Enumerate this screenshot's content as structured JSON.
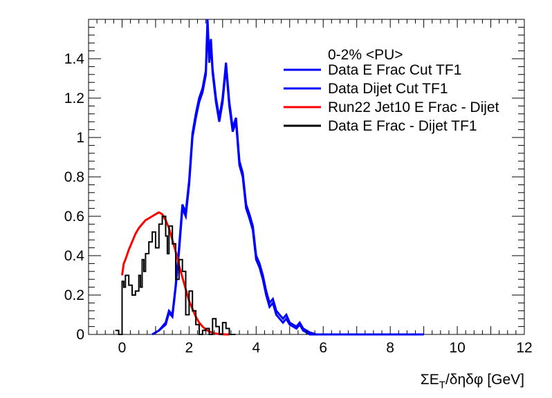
{
  "chart_data": {
    "type": "line",
    "title": "",
    "xlabel": "ΣE_T/δηδφ [GeV]",
    "xlabel_parts": {
      "pre": "ΣE",
      "sub": "T",
      "post": "/δηδφ [GeV]"
    },
    "ylabel": "",
    "xlim": [
      -1,
      12
    ],
    "ylim": [
      0,
      1.6
    ],
    "x_ticks": [
      "0",
      "2",
      "4",
      "6",
      "8",
      "10",
      "12"
    ],
    "x_tick_values": [
      0,
      2,
      4,
      6,
      8,
      10,
      12
    ],
    "y_ticks": [
      "0",
      "0.2",
      "0.4",
      "0.6",
      "0.8",
      "1",
      "1.2",
      "1.4"
    ],
    "y_tick_values": [
      0,
      0.2,
      0.4,
      0.6,
      0.8,
      1.0,
      1.2,
      1.4
    ],
    "grid": false,
    "legend_placement": "top-right",
    "legend_header": "0-2% <PU>",
    "series": [
      {
        "name": "Data E Frac Cut TF1",
        "color": "#0000ff",
        "style": "line",
        "x": [
          0.9,
          1.1,
          1.3,
          1.4,
          1.5,
          1.6,
          1.7,
          1.8,
          1.9,
          2.0,
          2.1,
          2.2,
          2.3,
          2.4,
          2.5,
          2.55,
          2.6,
          2.65,
          2.7,
          2.8,
          2.9,
          3.0,
          3.1,
          3.2,
          3.3,
          3.4,
          3.5,
          3.6,
          3.7,
          3.8,
          3.9,
          4.0,
          4.1,
          4.2,
          4.3,
          4.4,
          4.5,
          4.6,
          4.7,
          4.8,
          4.9,
          5.0,
          5.1,
          5.2,
          5.3,
          5.4,
          5.5,
          5.6,
          5.8,
          6.0,
          7.0,
          8.0,
          9.0
        ],
        "y": [
          0.0,
          0.02,
          0.06,
          0.12,
          0.1,
          0.25,
          0.44,
          0.66,
          0.62,
          0.78,
          1.02,
          1.12,
          1.2,
          1.25,
          1.34,
          1.6,
          1.4,
          1.5,
          1.35,
          1.2,
          1.1,
          1.2,
          1.38,
          1.18,
          1.05,
          1.1,
          0.88,
          0.82,
          0.66,
          0.61,
          0.55,
          0.4,
          0.36,
          0.3,
          0.22,
          0.16,
          0.18,
          0.12,
          0.1,
          0.08,
          0.1,
          0.06,
          0.05,
          0.04,
          0.06,
          0.03,
          0.02,
          0.01,
          0.0,
          0.0,
          0.0,
          0.0,
          0.0
        ]
      },
      {
        "name": "Data Dijet Cut TF1",
        "color": "#0000ff",
        "style": "line",
        "x": [
          0.9,
          1.1,
          1.3,
          1.4,
          1.5,
          1.6,
          1.7,
          1.8,
          1.9,
          2.0,
          2.1,
          2.2,
          2.3,
          2.4,
          2.5,
          2.55,
          2.6,
          2.65,
          2.7,
          2.8,
          2.9,
          3.0,
          3.1,
          3.2,
          3.3,
          3.4,
          3.5,
          3.6,
          3.7,
          3.8,
          3.9,
          4.0,
          4.1,
          4.2,
          4.3,
          4.4,
          4.5,
          4.6,
          4.7,
          4.8,
          4.9,
          5.0,
          5.1,
          5.2,
          5.3,
          5.4,
          5.5,
          5.6,
          5.8,
          6.0,
          7.0,
          8.0,
          9.0
        ],
        "y": [
          0.0,
          0.02,
          0.05,
          0.11,
          0.09,
          0.24,
          0.42,
          0.64,
          0.6,
          0.76,
          1.0,
          1.1,
          1.18,
          1.23,
          1.32,
          1.58,
          1.38,
          1.48,
          1.33,
          1.18,
          1.08,
          1.18,
          1.36,
          1.16,
          1.03,
          1.08,
          0.86,
          0.8,
          0.64,
          0.59,
          0.53,
          0.38,
          0.34,
          0.28,
          0.2,
          0.14,
          0.16,
          0.1,
          0.08,
          0.06,
          0.08,
          0.05,
          0.04,
          0.03,
          0.05,
          0.02,
          0.01,
          0.0,
          0.0,
          0.0,
          0.0,
          0.0,
          0.0
        ]
      },
      {
        "name": "Run22 Jet10 E Frac - Dijet",
        "color": "#ff0000",
        "style": "line",
        "x": [
          0.0,
          0.05,
          0.1,
          0.2,
          0.3,
          0.4,
          0.5,
          0.6,
          0.7,
          0.8,
          0.9,
          1.0,
          1.1,
          1.2,
          1.3,
          1.4,
          1.5,
          1.6,
          1.7,
          1.8,
          1.9,
          2.0,
          2.1,
          2.2,
          2.3,
          2.4,
          2.5,
          2.6,
          2.7,
          2.8,
          2.9,
          3.0,
          3.1,
          3.2
        ],
        "y": [
          0.3,
          0.36,
          0.38,
          0.43,
          0.47,
          0.51,
          0.54,
          0.56,
          0.58,
          0.59,
          0.6,
          0.61,
          0.62,
          0.61,
          0.58,
          0.54,
          0.48,
          0.42,
          0.35,
          0.29,
          0.23,
          0.17,
          0.13,
          0.09,
          0.06,
          0.04,
          0.025,
          0.015,
          0.008,
          0.004,
          0.002,
          0.001,
          0.0,
          0.0
        ]
      },
      {
        "name": "Data E Frac - Dijet TF1",
        "color": "#000000",
        "style": "step",
        "x": [
          -0.2,
          -0.1,
          0.0,
          0.05,
          0.1,
          0.2,
          0.3,
          0.4,
          0.5,
          0.55,
          0.6,
          0.65,
          0.7,
          0.8,
          0.9,
          1.0,
          1.1,
          1.2,
          1.3,
          1.35,
          1.4,
          1.5,
          1.6,
          1.7,
          1.8,
          1.9,
          2.0,
          2.1,
          2.2,
          2.3,
          2.4,
          2.5,
          2.6,
          2.7,
          2.8,
          2.9,
          3.0,
          3.1,
          3.2,
          3.3
        ],
        "y": [
          0.02,
          0.0,
          0.27,
          0.24,
          0.3,
          0.25,
          0.2,
          0.22,
          0.3,
          0.24,
          0.38,
          0.32,
          0.41,
          0.47,
          0.52,
          0.44,
          0.56,
          0.6,
          0.5,
          0.41,
          0.55,
          0.46,
          0.28,
          0.38,
          0.32,
          0.1,
          0.22,
          0.12,
          0.05,
          0.0,
          0.02,
          0.03,
          0.0,
          0.08,
          0.04,
          0.0,
          0.06,
          0.03,
          0.0,
          0.0
        ]
      }
    ]
  }
}
